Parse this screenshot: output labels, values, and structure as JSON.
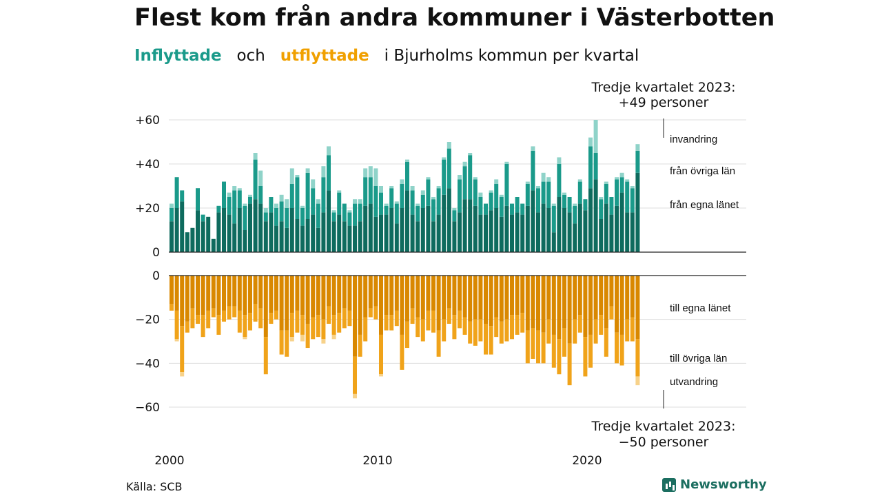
{
  "title": "Flest kom från andra kommuner i Västerbotten",
  "subtitle": {
    "in_label": "Inflyttade",
    "mid": "och",
    "out_label": "utflyttade",
    "rest": "i Bjurholms kommun per kvartal"
  },
  "source": "Källa: SCB",
  "brand": "Newsworthy",
  "callout_top": {
    "line1": "Tredje kvartalet 2023:",
    "line2": "+49 personer"
  },
  "callout_bottom": {
    "line1": "Tredje kvartalet 2023:",
    "line2": "−50 personer"
  },
  "labels_in": {
    "a": "invandring",
    "b": "från övriga län",
    "c": "från egna länet"
  },
  "labels_out": {
    "a": "till egna länet",
    "b": "till övriga län",
    "c": "utvandring"
  },
  "colors": {
    "in_egna": "#0e6b5e",
    "in_ovriga": "#1a9a8a",
    "in_invandring": "#8fd3c9",
    "out_egna": "#d98800",
    "out_ovriga": "#f0a31a",
    "out_utvandring": "#f7d28a",
    "grid": "#dddddd",
    "axis": "#222222"
  },
  "chart_data": {
    "type": "bar",
    "x_start": "2000 Q1",
    "x_ticks": [
      "2000",
      "2010",
      "2020"
    ],
    "inflow_ticks": [
      "+60",
      "+40",
      "+20",
      "0"
    ],
    "outflow_ticks": [
      "0",
      "−20",
      "−40",
      "−60"
    ],
    "ylim_inflow": [
      0,
      60
    ],
    "ylim_outflow": [
      -60,
      0
    ],
    "series_in_total": [
      22,
      34,
      28,
      9,
      11,
      29,
      17,
      16,
      6,
      21,
      32,
      27,
      30,
      29,
      22,
      26,
      45,
      37,
      20,
      25,
      22,
      26,
      24,
      38,
      35,
      21,
      38,
      33,
      24,
      39,
      48,
      19,
      28,
      22,
      19,
      24,
      24,
      38,
      39,
      38,
      30,
      22,
      30,
      23,
      33,
      42,
      30,
      22,
      28,
      34,
      25,
      30,
      43,
      50,
      20,
      35,
      41,
      45,
      34,
      27,
      22,
      28,
      33,
      26,
      41,
      22,
      25,
      22,
      32,
      48,
      30,
      36,
      34,
      22,
      43,
      27,
      25,
      22,
      33,
      24,
      52,
      60,
      25,
      32,
      25,
      34,
      36,
      33,
      30,
      49
    ],
    "series_in_egna": [
      14,
      20,
      23,
      9,
      11,
      19,
      14,
      16,
      6,
      18,
      20,
      17,
      13,
      20,
      10,
      22,
      24,
      22,
      14,
      18,
      12,
      14,
      11,
      20,
      15,
      12,
      15,
      17,
      11,
      18,
      28,
      14,
      17,
      14,
      12,
      12,
      14,
      21,
      22,
      16,
      17,
      17,
      20,
      13,
      20,
      28,
      17,
      14,
      20,
      21,
      14,
      17,
      26,
      29,
      14,
      18,
      24,
      24,
      21,
      17,
      17,
      19,
      20,
      16,
      21,
      17,
      18,
      17,
      21,
      28,
      18,
      22,
      20,
      9,
      25,
      20,
      18,
      13,
      22,
      19,
      29,
      33,
      15,
      22,
      17,
      21,
      27,
      18,
      18,
      36
    ],
    "series_in_ovriga": [
      6,
      14,
      5,
      0,
      0,
      10,
      3,
      0,
      0,
      3,
      12,
      8,
      15,
      8,
      11,
      3,
      18,
      8,
      4,
      7,
      8,
      9,
      9,
      11,
      19,
      8,
      21,
      12,
      11,
      16,
      16,
      4,
      10,
      8,
      6,
      10,
      8,
      13,
      12,
      14,
      10,
      4,
      9,
      9,
      11,
      13,
      11,
      7,
      6,
      12,
      10,
      12,
      16,
      18,
      5,
      15,
      15,
      20,
      12,
      8,
      5,
      8,
      11,
      9,
      19,
      5,
      7,
      5,
      10,
      18,
      11,
      10,
      12,
      12,
      15,
      6,
      7,
      8,
      10,
      5,
      19,
      12,
      9,
      9,
      8,
      12,
      7,
      14,
      11,
      10
    ],
    "series_out_total": [
      16,
      30,
      46,
      26,
      24,
      22,
      28,
      24,
      19,
      27,
      21,
      20,
      19,
      26,
      29,
      25,
      21,
      24,
      45,
      22,
      20,
      36,
      37,
      30,
      26,
      30,
      33,
      29,
      28,
      31,
      22,
      29,
      26,
      24,
      23,
      56,
      37,
      30,
      19,
      20,
      46,
      25,
      25,
      23,
      43,
      33,
      22,
      28,
      30,
      25,
      26,
      37,
      30,
      22,
      29,
      24,
      27,
      31,
      32,
      30,
      36,
      36,
      28,
      31,
      30,
      29,
      27,
      26,
      40,
      38,
      40,
      40,
      31,
      42,
      45,
      37,
      50,
      31,
      26,
      46,
      42,
      31,
      27,
      37,
      20,
      40,
      41,
      30,
      30,
      50
    ],
    "series_out_egna": [
      13,
      16,
      23,
      21,
      15,
      18,
      18,
      16,
      15,
      18,
      16,
      14,
      14,
      16,
      18,
      17,
      13,
      15,
      28,
      17,
      16,
      25,
      25,
      17,
      16,
      18,
      22,
      19,
      18,
      20,
      14,
      18,
      17,
      15,
      16,
      37,
      27,
      19,
      15,
      14,
      27,
      18,
      18,
      16,
      27,
      21,
      15,
      19,
      20,
      16,
      16,
      25,
      20,
      15,
      18,
      16,
      19,
      21,
      20,
      20,
      22,
      23,
      19,
      21,
      20,
      18,
      18,
      17,
      25,
      24,
      25,
      26,
      20,
      27,
      29,
      24,
      31,
      20,
      18,
      28,
      27,
      20,
      18,
      24,
      14,
      26,
      27,
      20,
      19,
      29
    ],
    "series_out_ovriga": [
      3,
      13,
      21,
      5,
      9,
      4,
      10,
      8,
      4,
      9,
      5,
      6,
      5,
      10,
      10,
      8,
      8,
      9,
      17,
      5,
      4,
      11,
      12,
      11,
      10,
      9,
      11,
      10,
      10,
      9,
      8,
      9,
      9,
      9,
      7,
      17,
      10,
      11,
      4,
      6,
      18,
      7,
      7,
      7,
      16,
      12,
      7,
      9,
      10,
      9,
      10,
      12,
      10,
      7,
      11,
      8,
      8,
      10,
      12,
      10,
      14,
      13,
      9,
      10,
      10,
      11,
      9,
      9,
      15,
      14,
      15,
      14,
      11,
      15,
      16,
      13,
      19,
      11,
      8,
      18,
      15,
      11,
      9,
      13,
      6,
      14,
      14,
      10,
      11,
      17
    ]
  }
}
